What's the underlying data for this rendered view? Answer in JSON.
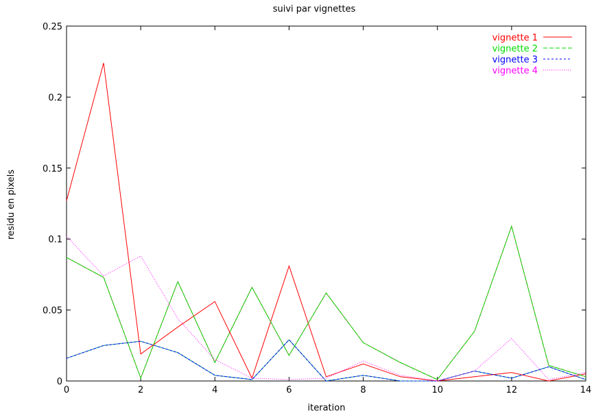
{
  "chart_data": {
    "type": "line",
    "title": "suivi par vignettes",
    "xlabel": "iteration",
    "ylabel": "residu en pixels",
    "xlim": [
      0,
      14
    ],
    "ylim": [
      0,
      0.25
    ],
    "xticks": [
      0,
      2,
      4,
      6,
      8,
      10,
      12,
      14
    ],
    "xtick_labels": [
      "0",
      "2",
      "4",
      "6",
      "8",
      "10",
      "12",
      "14"
    ],
    "yticks": [
      0,
      0.05,
      0.1,
      0.15,
      0.2,
      0.25
    ],
    "ytick_labels": [
      "0",
      "0.05",
      "0.1",
      "0.15",
      "0.2",
      "0.25"
    ],
    "grid": false,
    "legend_position": "top-right",
    "x": [
      0,
      1,
      2,
      3,
      4,
      5,
      6,
      7,
      8,
      9,
      10,
      11,
      12,
      13,
      14
    ],
    "series": [
      {
        "name": "vignette 1",
        "color": "#ff0000",
        "dash": "solid",
        "values": [
          0.127,
          0.224,
          0.019,
          0.038,
          0.056,
          0.002,
          0.081,
          0.003,
          0.012,
          0.003,
          0.0,
          0.003,
          0.006,
          0.0,
          0.005
        ]
      },
      {
        "name": "vignette 2",
        "color": "#00dd00",
        "dash": "dashed",
        "values": [
          0.087,
          0.073,
          0.002,
          0.07,
          0.013,
          0.066,
          0.018,
          0.062,
          0.027,
          0.013,
          0.001,
          0.035,
          0.109,
          0.011,
          0.003
        ]
      },
      {
        "name": "vignette 3",
        "color": "#0000ff",
        "dash": "short-dash",
        "values": [
          0.016,
          0.025,
          0.028,
          0.02,
          0.004,
          0.001,
          0.029,
          0.0,
          0.004,
          0.0,
          0.0,
          0.007,
          0.002,
          0.01,
          0.001
        ]
      },
      {
        "name": "vignette 4",
        "color": "#ff00ff",
        "dash": "dotted",
        "values": [
          0.102,
          0.074,
          0.088,
          0.044,
          0.015,
          0.002,
          0.001,
          0.002,
          0.014,
          0.004,
          0.0,
          0.007,
          0.03,
          0.001,
          0.006
        ]
      }
    ],
    "overlay_lines": [
      {
        "name": "",
        "color": "#6b8e23",
        "dash": "solid",
        "values": [
          0.087,
          0.073,
          0.002,
          0.07,
          0.013,
          0.066,
          0.018,
          0.062,
          0.027,
          0.013,
          0.001,
          0.035,
          0.109,
          0.011,
          0.003
        ]
      },
      {
        "name": "",
        "color": "#008b8b",
        "dash": "solid",
        "values": [
          0.016,
          0.025,
          0.028,
          0.02,
          0.004,
          0.001,
          0.029,
          0.0,
          0.004,
          0.0,
          0.0,
          0.007,
          0.002,
          0.01,
          0.001
        ]
      }
    ]
  }
}
